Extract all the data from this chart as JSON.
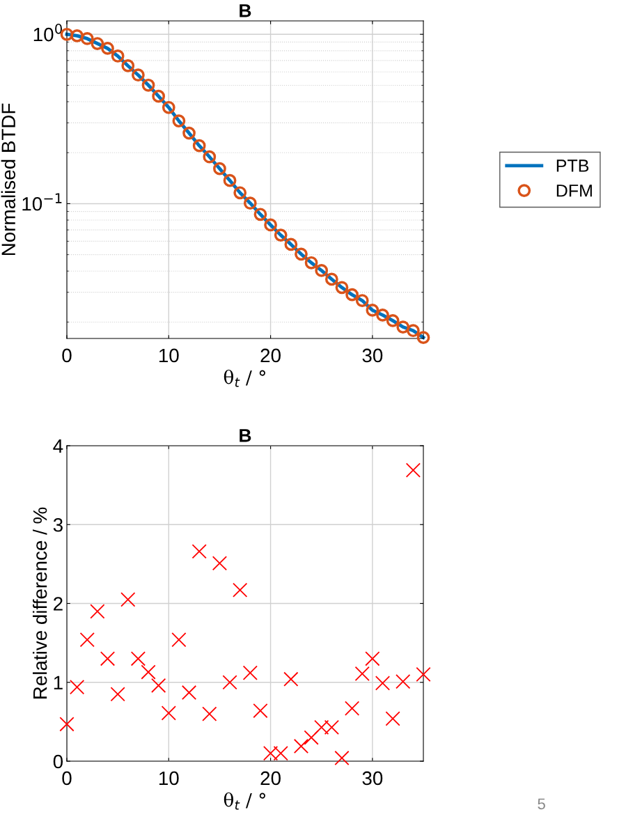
{
  "chart_data": [
    {
      "type": "line",
      "title": "B",
      "xlabel": "θ$_{t}$ / °",
      "ylabel": "Normalised BTDF",
      "log": "y",
      "grid": true,
      "legend": "right",
      "xlim": [
        0,
        35
      ],
      "xticks": [
        0,
        10,
        20,
        30
      ],
      "ylim": [
        0.016,
        1.2
      ],
      "yticks": [
        {
          "value": 1,
          "label": "10$^{0}$"
        },
        {
          "value": 0.1,
          "label": "10$^{−1}$"
        }
      ],
      "x": [
        0,
        1,
        2,
        3,
        4,
        5,
        6,
        7,
        8,
        9,
        10,
        11,
        12,
        13,
        14,
        15,
        16,
        17,
        18,
        19,
        20,
        21,
        22,
        23,
        24,
        25,
        26,
        27,
        28,
        29,
        30,
        31,
        32,
        33,
        34,
        35
      ],
      "series": [
        {
          "name": "PTB",
          "type": "line",
          "color": "#0072bd",
          "marker": "none",
          "line_style": "solid",
          "values": [
            1.0,
            0.98,
            0.943,
            0.882,
            0.826,
            0.744,
            0.652,
            0.575,
            0.501,
            0.431,
            0.37,
            0.308,
            0.261,
            0.22,
            0.189,
            0.161,
            0.137,
            0.116,
            0.1007,
            0.0865,
            0.0749,
            0.0652,
            0.0575,
            0.0504,
            0.0448,
            0.0403,
            0.0358,
            0.032,
            0.029,
            0.0268,
            0.0235,
            0.022,
            0.0204,
            0.0187,
            0.0178,
            0.0162
          ]
        },
        {
          "name": "DFM",
          "type": "scatter",
          "color": "#d95319",
          "marker": "circle",
          "values": [
            1.0,
            0.98,
            0.943,
            0.882,
            0.826,
            0.744,
            0.652,
            0.575,
            0.501,
            0.431,
            0.37,
            0.308,
            0.261,
            0.22,
            0.189,
            0.161,
            0.137,
            0.116,
            0.1007,
            0.0865,
            0.0749,
            0.0652,
            0.0575,
            0.0504,
            0.0448,
            0.0403,
            0.0358,
            0.032,
            0.029,
            0.0268,
            0.0235,
            0.022,
            0.0204,
            0.0187,
            0.0178,
            0.0162
          ]
        }
      ]
    },
    {
      "type": "scatter",
      "title": "B",
      "xlabel": "θ$_{t}$ / °",
      "ylabel": "Relative difference / %",
      "grid": true,
      "marker": "cross",
      "xlim": [
        0,
        35
      ],
      "xticks": [
        0,
        10,
        20,
        30
      ],
      "ylim": [
        0,
        4
      ],
      "yticks": [
        0,
        1,
        2,
        3,
        4
      ],
      "x": [
        0,
        1,
        2,
        3,
        4,
        5,
        6,
        7,
        8,
        9,
        10,
        11,
        12,
        13,
        14,
        15,
        16,
        17,
        18,
        19,
        20,
        21,
        22,
        23,
        24,
        25,
        26,
        27,
        28,
        29,
        30,
        31,
        32,
        33,
        34,
        35
      ],
      "series": [
        {
          "color": "#ff0000",
          "values": [
            0.47,
            0.94,
            1.54,
            1.9,
            1.3,
            0.85,
            2.05,
            1.3,
            1.13,
            0.96,
            0.61,
            1.54,
            0.87,
            2.66,
            0.6,
            2.51,
            1.0,
            2.17,
            1.12,
            0.64,
            0.1,
            0.1,
            1.04,
            0.19,
            0.3,
            0.43,
            0.43,
            0.04,
            0.67,
            1.11,
            1.3,
            0.99,
            0.54,
            1.01,
            3.69,
            1.1
          ]
        }
      ],
      "annotations": [
        "5"
      ]
    }
  ]
}
